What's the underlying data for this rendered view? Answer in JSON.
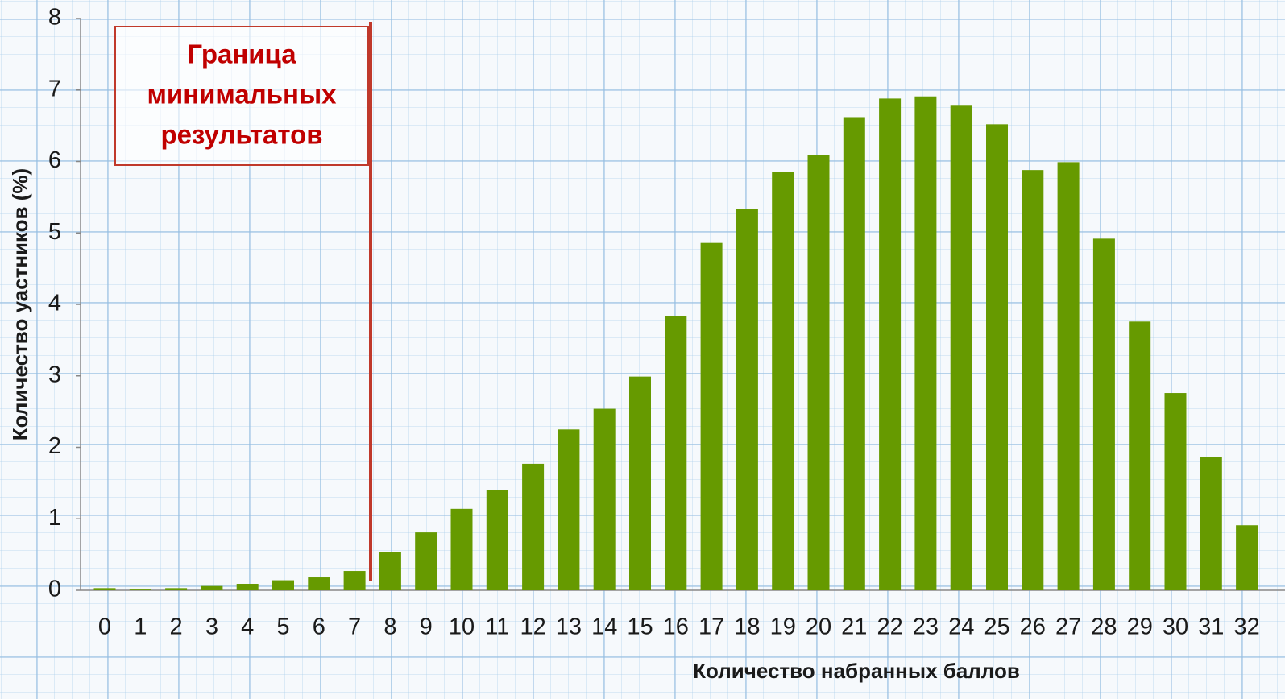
{
  "chart_data": {
    "type": "bar",
    "x_label": "Количество набранных баллов",
    "y_label": "Количество уастников (%)",
    "annotation": [
      "Граница",
      "минимальных",
      "результатов"
    ],
    "categories": [
      "0",
      "1",
      "2",
      "3",
      "4",
      "5",
      "6",
      "7",
      "8",
      "9",
      "10",
      "11",
      "12",
      "13",
      "14",
      "15",
      "16",
      "17",
      "18",
      "19",
      "20",
      "21",
      "22",
      "23",
      "24",
      "25",
      "26",
      "27",
      "28",
      "29",
      "30",
      "31",
      "32"
    ],
    "values": [
      0.03,
      0.01,
      0.03,
      0.06,
      0.09,
      0.14,
      0.18,
      0.27,
      0.54,
      0.81,
      1.14,
      1.4,
      1.77,
      2.25,
      2.54,
      2.99,
      3.84,
      4.86,
      5.34,
      5.85,
      6.09,
      6.62,
      6.88,
      6.91,
      6.78,
      6.52,
      5.88,
      5.99,
      4.92,
      3.76,
      2.76,
      1.87,
      0.91
    ],
    "color": "#669a00",
    "ylim": [
      0,
      8
    ],
    "yticks": [
      0,
      1,
      2,
      3,
      4,
      5,
      6,
      7,
      8
    ]
  }
}
